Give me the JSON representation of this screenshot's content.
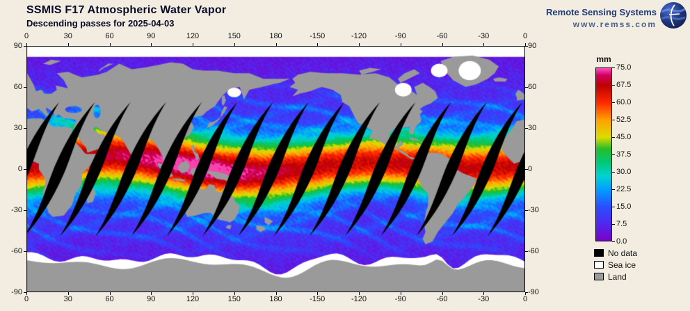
{
  "header": {
    "title": "SSMIS F17 Atmospheric Water Vapor",
    "subtitle": "Descending passes for 2025-04-03"
  },
  "branding": {
    "name": "Remote Sensing Systems",
    "url": "www.remss.com"
  },
  "map": {
    "lon_ticks": [
      "0",
      "30",
      "60",
      "90",
      "120",
      "150",
      "180",
      "-150",
      "-120",
      "-90",
      "-60",
      "-30",
      "0"
    ],
    "lat_ticks": [
      "90",
      "60",
      "30",
      "0",
      "-30",
      "-60",
      "-90"
    ]
  },
  "colorbar": {
    "unit": "mm",
    "tick_labels": [
      "75.0",
      "67.5",
      "60.0",
      "52.5",
      "45.0",
      "37.5",
      "30.0",
      "22.5",
      "15.0",
      "7.5",
      "0.0"
    ]
  },
  "legend": {
    "items": [
      {
        "label": "No data",
        "color": "#000000"
      },
      {
        "label": "Sea ice",
        "color": "#FFFFFF"
      },
      {
        "label": "Land",
        "color": "#9A9A9A"
      }
    ]
  },
  "colors": {
    "background": "#F2EDE0",
    "frame": "#000000",
    "land": "#9A9A9A",
    "no_data": "#000000",
    "sea_ice": "#FFFFFF",
    "title_text": "#0A0A28",
    "brand_navy": "#1E3C78",
    "brand_url_color": "#46648C"
  },
  "chart_data": {
    "type": "heatmap",
    "title": "SSMIS F17 Atmospheric Water Vapor",
    "subtitle": "Descending passes for 2025-04-03",
    "satellite": "SSMIS F17",
    "pass": "Descending",
    "date": "2025-04-03",
    "variable": "atmospheric water vapor",
    "units": "mm",
    "scale_min": 0.0,
    "scale_max": 75.0,
    "scale_ticks": [
      75.0,
      67.5,
      60.0,
      52.5,
      45.0,
      37.5,
      30.0,
      22.5,
      15.0,
      7.5,
      0.0
    ],
    "projection": "equirectangular",
    "lon_range": [
      0,
      360
    ],
    "lat_range": [
      -90,
      90
    ],
    "lon_tick_interval": 30,
    "lat_tick_interval": 30,
    "categories": [
      {
        "label": "No data",
        "color": "#000000"
      },
      {
        "label": "Sea ice",
        "color": "#FFFFFF"
      },
      {
        "label": "Land",
        "color": "#9A9A9A"
      }
    ],
    "colormap": [
      {
        "v": 0.0,
        "color": "#7A00C8"
      },
      {
        "v": 7.5,
        "color": "#5028F0"
      },
      {
        "v": 15.0,
        "color": "#2850FF"
      },
      {
        "v": 22.5,
        "color": "#00A0FF"
      },
      {
        "v": 28.0,
        "color": "#00D2D2"
      },
      {
        "v": 34.0,
        "color": "#00C878"
      },
      {
        "v": 40.0,
        "color": "#28BE28"
      },
      {
        "v": 45.0,
        "color": "#DCDC00"
      },
      {
        "v": 52.5,
        "color": "#FFA000"
      },
      {
        "v": 60.0,
        "color": "#FF2800"
      },
      {
        "v": 67.5,
        "color": "#BE0000"
      },
      {
        "v": 72.0,
        "color": "#D20064"
      },
      {
        "v": 75.0,
        "color": "#FF50BE"
      }
    ]
  }
}
